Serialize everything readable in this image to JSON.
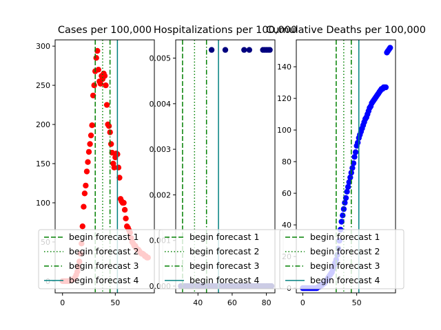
{
  "chart_data": [
    {
      "type": "scatter",
      "title": "Cases per 100,000",
      "xlim": [
        -7,
        87
      ],
      "ylim": [
        -15,
        308
      ],
      "xticks": [
        0,
        50
      ],
      "yticks": [
        0,
        50,
        100,
        150,
        200,
        250,
        300
      ],
      "point_color": "#ff0000",
      "x": [
        0,
        1,
        2,
        3,
        4,
        5,
        6,
        7,
        8,
        9,
        10,
        11,
        12,
        13,
        14,
        15,
        16,
        17,
        18,
        19,
        20,
        21,
        22,
        23,
        24,
        25,
        26,
        27,
        28,
        29,
        30,
        31,
        32,
        33,
        34,
        35,
        36,
        37,
        38,
        39,
        40,
        41,
        42,
        43,
        44,
        45,
        46,
        47,
        48,
        49,
        50,
        51,
        52,
        53,
        54,
        55,
        56,
        57,
        58,
        59,
        60,
        61,
        62,
        63,
        64,
        65,
        66,
        67,
        68,
        69,
        70,
        71,
        72,
        73,
        74,
        75,
        76,
        77,
        78,
        79,
        80,
        81
      ],
      "y": [
        0,
        0,
        0,
        0,
        0,
        0,
        0,
        1,
        1,
        2,
        2,
        3,
        5,
        8,
        12,
        18,
        25,
        35,
        48,
        70,
        95,
        112,
        122,
        140,
        152,
        165,
        175,
        186,
        199,
        237,
        250,
        268,
        285,
        294,
        270,
        255,
        252,
        262,
        258,
        265,
        262,
        250,
        225,
        200,
        198,
        190,
        175,
        164,
        150,
        145,
        158,
        163,
        162,
        145,
        132,
        105,
        102,
        100,
        100,
        91,
        80,
        70,
        68,
        65,
        62,
        55,
        50,
        48,
        45,
        45,
        42,
        40,
        40,
        38,
        36,
        35,
        35,
        34,
        32,
        32,
        30,
        30
      ]
    },
    {
      "type": "scatter",
      "title": "Hospitalizations per 100,000",
      "xlim": [
        27,
        85
      ],
      "ylim": [
        -0.00015,
        0.0054
      ],
      "xticks": [
        40,
        60,
        80
      ],
      "yticks": [
        0.0,
        0.001,
        0.002,
        0.003,
        0.004,
        0.005
      ],
      "ytick_labels": [
        "0.000",
        "0.001",
        "0.002",
        "0.003",
        "0.004",
        "0.005"
      ],
      "point_color": "#00007f",
      "x": [
        30,
        31,
        32,
        33,
        34,
        35,
        36,
        37,
        38,
        39,
        40,
        41,
        42,
        43,
        44,
        45,
        46,
        47,
        48,
        49,
        50,
        51,
        52,
        53,
        54,
        55,
        56,
        57,
        58,
        59,
        60,
        61,
        62,
        63,
        64,
        65,
        66,
        67,
        68,
        69,
        70,
        71,
        72,
        73,
        74,
        75,
        76,
        77,
        78,
        79,
        80,
        81,
        82,
        83,
        48,
        56,
        67,
        70,
        78,
        79,
        80,
        81,
        82
      ],
      "y": [
        0,
        0,
        0,
        0,
        0,
        0,
        0,
        0,
        0,
        0,
        0,
        0,
        0,
        0,
        0,
        0,
        0,
        0,
        0,
        0,
        0,
        0,
        0,
        0,
        0,
        0,
        0,
        0,
        0,
        0,
        0,
        0,
        0,
        0,
        0,
        0,
        0,
        0,
        0,
        0,
        0,
        0,
        0,
        0,
        0,
        0,
        0,
        0,
        0,
        0,
        0,
        0,
        0,
        0,
        0.00518,
        0.00518,
        0.00518,
        0.00518,
        0.00518,
        0.00518,
        0.00518,
        0.00518,
        0.00518
      ]
    },
    {
      "type": "scatter",
      "title": "Cumulative Deaths per 100,000",
      "xlim": [
        -6,
        86
      ],
      "ylim": [
        -3,
        157
      ],
      "xticks": [
        0,
        50
      ],
      "yticks": [
        0,
        20,
        40,
        60,
        80,
        100,
        120,
        140
      ],
      "point_color": "#0000ff",
      "x": [
        0,
        1,
        2,
        3,
        4,
        5,
        6,
        7,
        8,
        9,
        10,
        11,
        12,
        13,
        14,
        15,
        16,
        17,
        18,
        19,
        20,
        21,
        22,
        23,
        24,
        25,
        26,
        27,
        28,
        29,
        30,
        31,
        32,
        33,
        34,
        35,
        36,
        37,
        38,
        39,
        40,
        41,
        42,
        43,
        44,
        45,
        46,
        47,
        48,
        49,
        50,
        51,
        52,
        53,
        54,
        55,
        56,
        57,
        58,
        59,
        60,
        61,
        62,
        63,
        64,
        65,
        66,
        67,
        68,
        69,
        70,
        71,
        72,
        73,
        74,
        75,
        76,
        77,
        78,
        79,
        80,
        81
      ],
      "y": [
        0,
        0,
        0,
        0,
        0,
        0,
        0,
        0,
        0,
        0,
        0,
        0,
        0,
        0,
        0.5,
        1,
        1,
        2,
        2,
        3,
        3,
        4,
        5,
        6,
        7,
        8,
        9,
        10,
        12,
        14,
        16,
        18,
        21,
        25,
        30,
        37,
        42,
        46,
        50,
        54,
        57,
        61,
        64,
        67,
        70,
        73,
        76,
        79,
        83,
        86,
        90,
        92,
        95,
        97,
        99,
        101,
        103,
        105,
        107,
        108,
        110,
        112,
        114,
        115,
        117,
        118,
        119,
        120,
        121,
        122,
        123,
        124,
        125,
        126,
        126,
        127,
        127,
        127,
        149,
        150,
        151,
        152
      ]
    }
  ],
  "vlines": [
    {
      "label": "begin forecast 1",
      "x": 31,
      "color": "#008000",
      "style": "dashed"
    },
    {
      "label": "begin forecast 2",
      "x": 38,
      "color": "#008000",
      "style": "dotted"
    },
    {
      "label": "begin forecast 3",
      "x": 45,
      "color": "#008000",
      "style": "dashdot"
    },
    {
      "label": "begin forecast 4",
      "x": 52,
      "color": "#008080",
      "style": "solid"
    }
  ],
  "legend_location": "lower left"
}
